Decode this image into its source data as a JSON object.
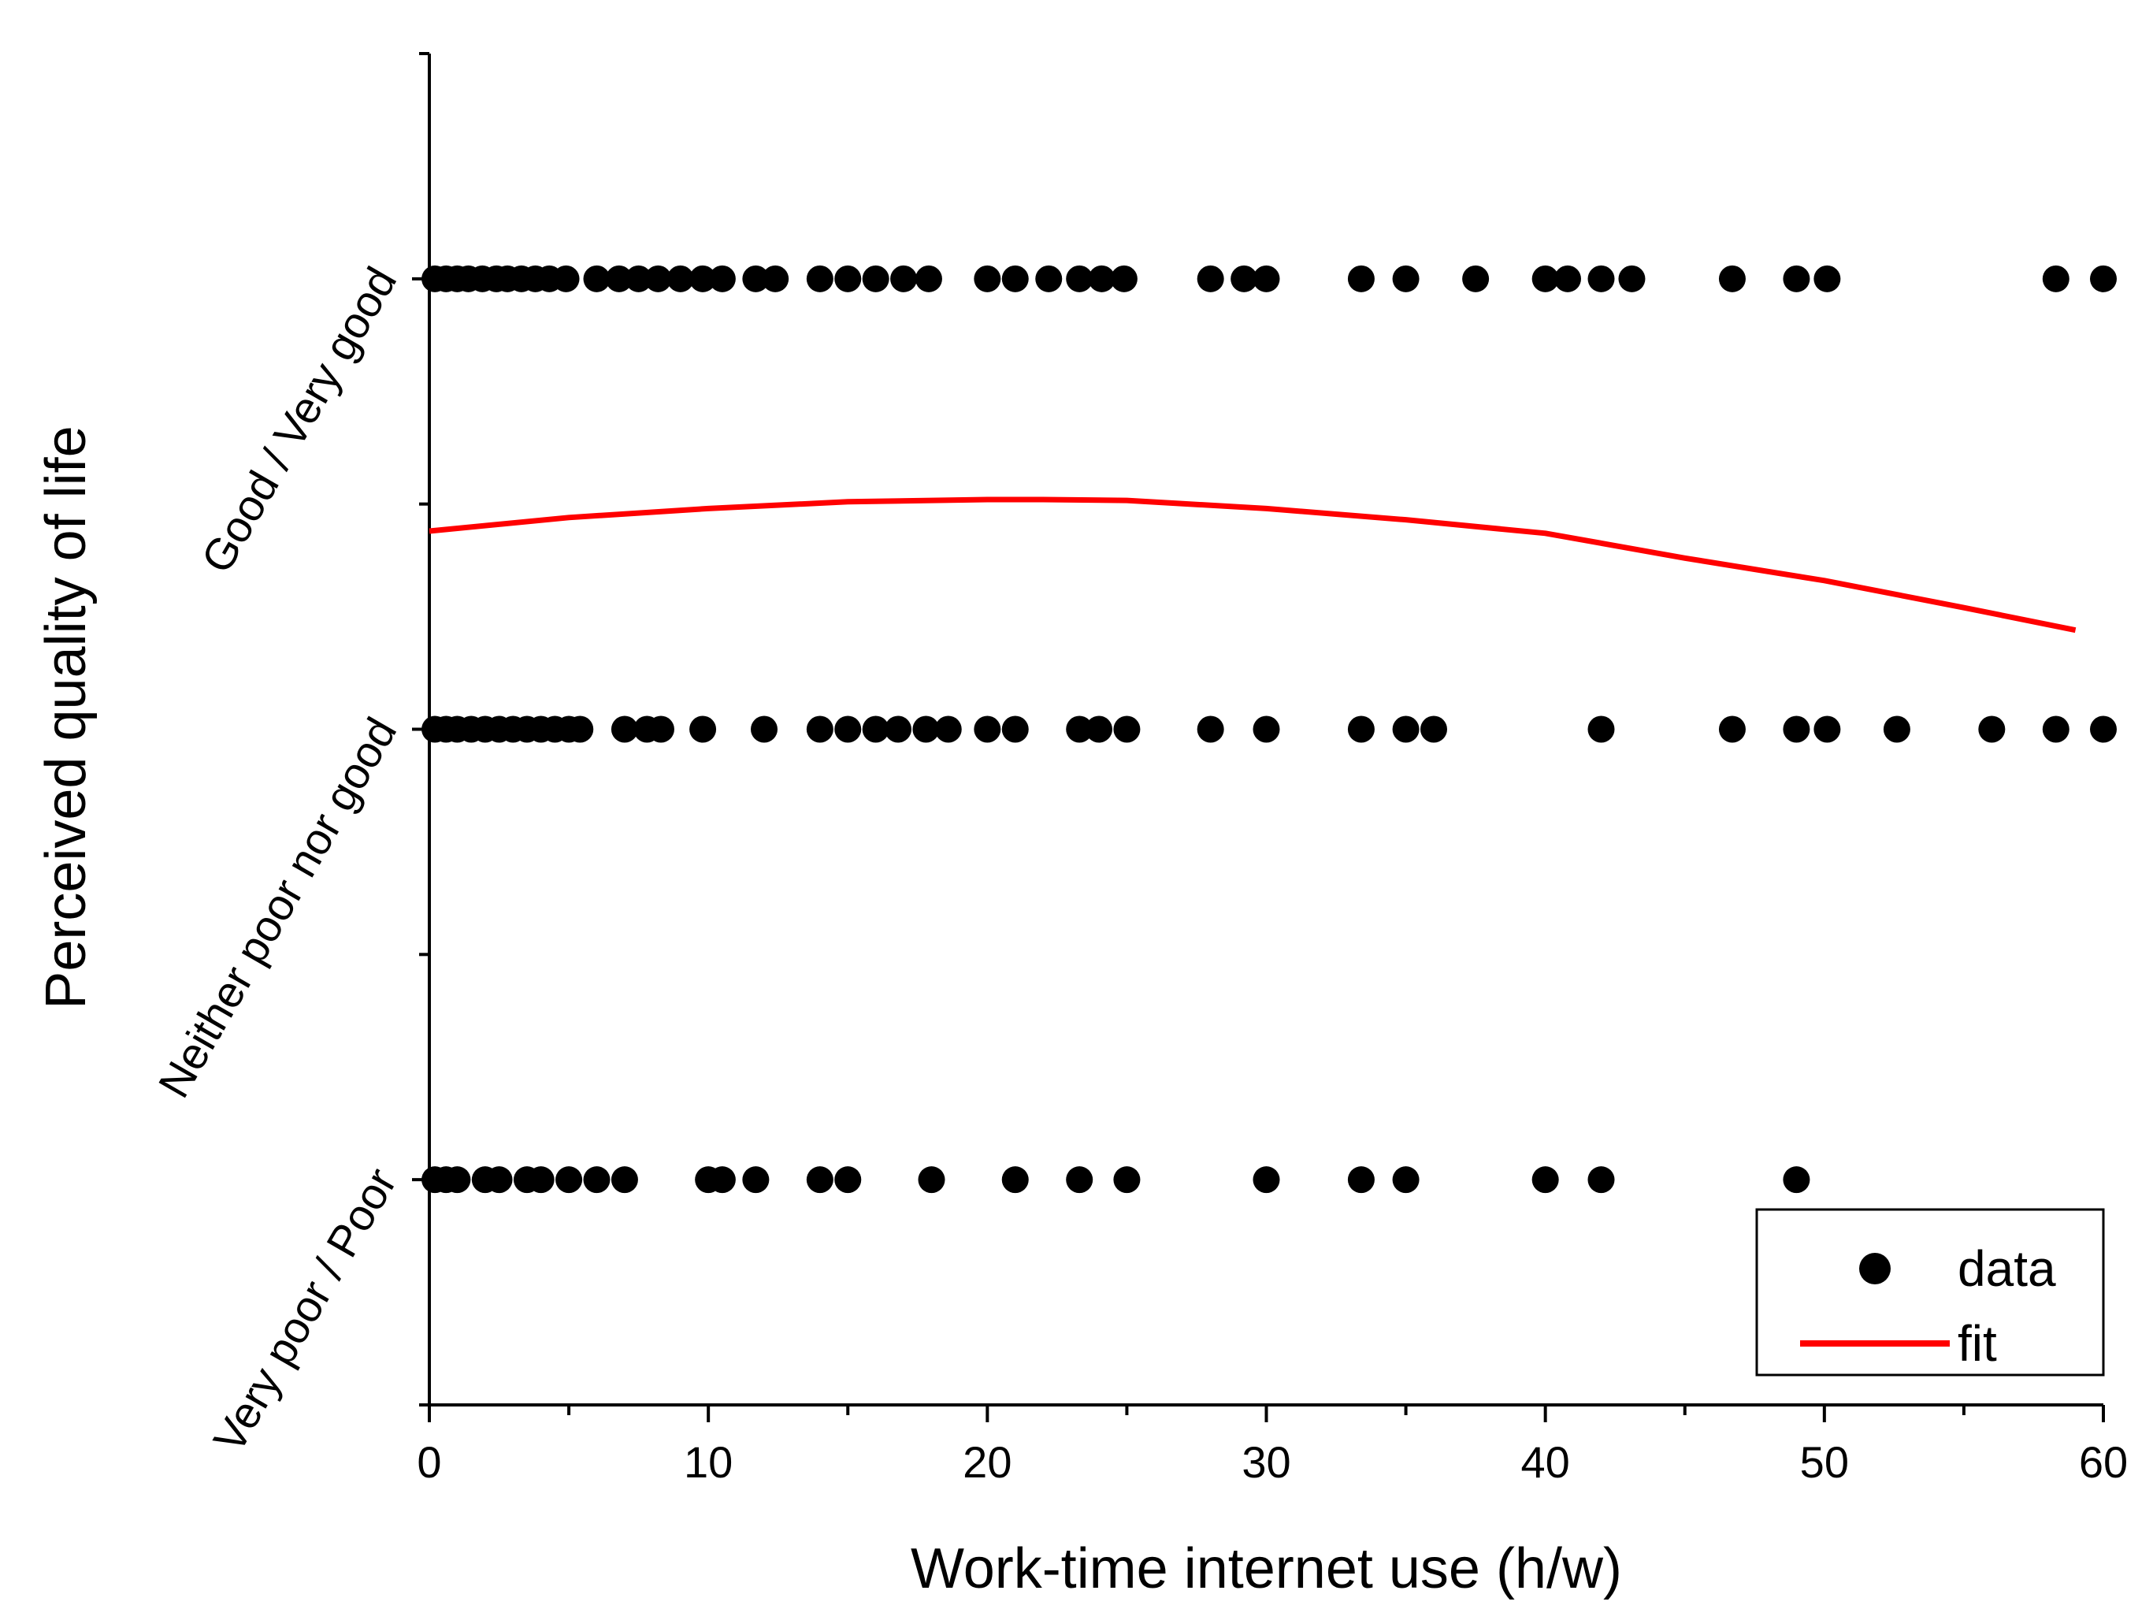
{
  "chart_data": {
    "type": "scatter",
    "xlabel": "Work-time internet use (h/w)",
    "ylabel": "Perceived quality of life",
    "xlim": [
      0,
      60
    ],
    "x_ticks": [
      0,
      10,
      20,
      30,
      40,
      50,
      60
    ],
    "ylim": [
      0.5,
      3.5
    ],
    "y_categories": [
      {
        "value": 1,
        "label": "Very poor / Poor"
      },
      {
        "value": 2,
        "label": "Neither poor nor good"
      },
      {
        "value": 3,
        "label": "Good / Very good"
      }
    ],
    "grid": false,
    "legend": {
      "placement": "bottom-right",
      "entries": [
        "data",
        "fit"
      ]
    },
    "colors": {
      "data": "#000000",
      "fit": "#ff0000"
    },
    "series": [
      {
        "name": "data",
        "kind": "scatter",
        "points": [
          [
            0.2,
            3
          ],
          [
            0.6,
            3
          ],
          [
            1,
            3
          ],
          [
            1.4,
            3
          ],
          [
            1.9,
            3
          ],
          [
            2.4,
            3
          ],
          [
            2.8,
            3
          ],
          [
            3.3,
            3
          ],
          [
            3.8,
            3
          ],
          [
            4.3,
            3
          ],
          [
            4.9,
            3
          ],
          [
            6,
            3
          ],
          [
            6.8,
            3
          ],
          [
            7.5,
            3
          ],
          [
            8.2,
            3
          ],
          [
            9,
            3
          ],
          [
            9.8,
            3
          ],
          [
            10.5,
            3
          ],
          [
            11.7,
            3
          ],
          [
            12.4,
            3
          ],
          [
            14,
            3
          ],
          [
            15,
            3
          ],
          [
            16,
            3
          ],
          [
            17,
            3
          ],
          [
            17.9,
            3
          ],
          [
            20,
            3
          ],
          [
            21,
            3
          ],
          [
            22.2,
            3
          ],
          [
            23.3,
            3
          ],
          [
            24.1,
            3
          ],
          [
            24.9,
            3
          ],
          [
            28,
            3
          ],
          [
            29.2,
            3
          ],
          [
            30,
            3
          ],
          [
            33.4,
            3
          ],
          [
            35,
            3
          ],
          [
            37.5,
            3
          ],
          [
            40,
            3
          ],
          [
            40.8,
            3
          ],
          [
            42,
            3
          ],
          [
            43.1,
            3
          ],
          [
            46.7,
            3
          ],
          [
            49,
            3
          ],
          [
            50.1,
            3
          ],
          [
            58.3,
            3
          ],
          [
            60,
            3
          ],
          [
            0.2,
            2
          ],
          [
            0.6,
            2
          ],
          [
            1,
            2
          ],
          [
            1.5,
            2
          ],
          [
            2,
            2
          ],
          [
            2.5,
            2
          ],
          [
            3,
            2
          ],
          [
            3.5,
            2
          ],
          [
            4,
            2
          ],
          [
            4.5,
            2
          ],
          [
            5,
            2
          ],
          [
            5.4,
            2
          ],
          [
            7,
            2
          ],
          [
            7.8,
            2
          ],
          [
            8.3,
            2
          ],
          [
            9.8,
            2
          ],
          [
            12,
            2
          ],
          [
            14,
            2
          ],
          [
            15,
            2
          ],
          [
            16,
            2
          ],
          [
            16.8,
            2
          ],
          [
            17.8,
            2
          ],
          [
            18.6,
            2
          ],
          [
            20,
            2
          ],
          [
            21,
            2
          ],
          [
            23.3,
            2
          ],
          [
            24,
            2
          ],
          [
            25,
            2
          ],
          [
            28,
            2
          ],
          [
            30,
            2
          ],
          [
            33.4,
            2
          ],
          [
            35,
            2
          ],
          [
            36,
            2
          ],
          [
            42,
            2
          ],
          [
            46.7,
            2
          ],
          [
            49,
            2
          ],
          [
            50.1,
            2
          ],
          [
            52.6,
            2
          ],
          [
            56,
            2
          ],
          [
            58.3,
            2
          ],
          [
            60,
            2
          ],
          [
            0.2,
            1
          ],
          [
            0.6,
            1
          ],
          [
            1,
            1
          ],
          [
            2,
            1
          ],
          [
            2.5,
            1
          ],
          [
            3.5,
            1
          ],
          [
            4,
            1
          ],
          [
            5,
            1
          ],
          [
            6,
            1
          ],
          [
            7,
            1
          ],
          [
            10,
            1
          ],
          [
            10.5,
            1
          ],
          [
            11.7,
            1
          ],
          [
            14,
            1
          ],
          [
            15,
            1
          ],
          [
            18,
            1
          ],
          [
            21,
            1
          ],
          [
            23.3,
            1
          ],
          [
            25,
            1
          ],
          [
            30,
            1
          ],
          [
            33.4,
            1
          ],
          [
            35,
            1
          ],
          [
            40,
            1
          ],
          [
            42,
            1
          ],
          [
            49,
            1
          ]
        ]
      },
      {
        "name": "fit",
        "kind": "line",
        "x": [
          0,
          5,
          10,
          15,
          20,
          22,
          25,
          30,
          35,
          40,
          45,
          50,
          55,
          59
        ],
        "y": [
          2.44,
          2.47,
          2.49,
          2.505,
          2.51,
          2.51,
          2.508,
          2.49,
          2.465,
          2.435,
          2.38,
          2.33,
          2.27,
          2.22
        ]
      }
    ]
  }
}
